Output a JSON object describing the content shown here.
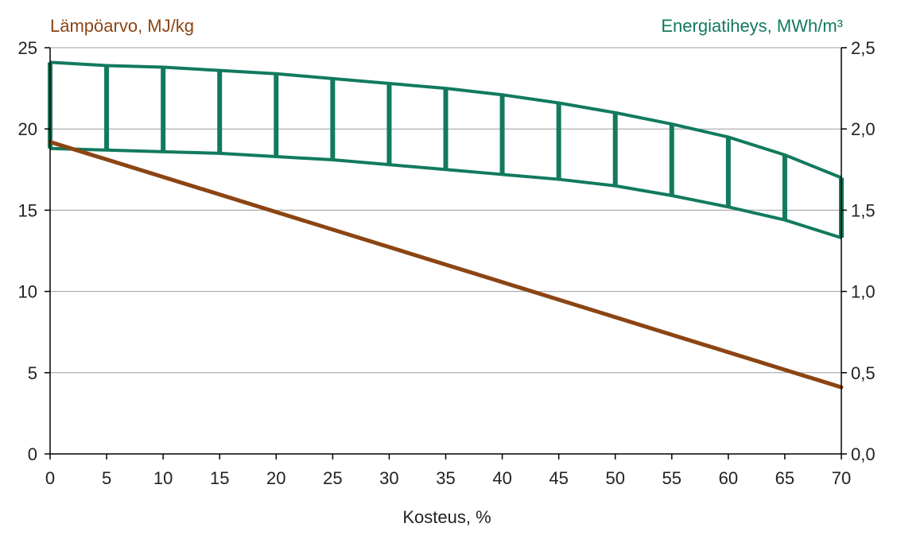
{
  "chart_data": {
    "type": "line",
    "title": "",
    "xlabel": "Kosteus, %",
    "ylabel_left": "Lämpöarvo, MJ/kg",
    "ylabel_right": "Energiatiheys, MWh/m³",
    "x": [
      0,
      5,
      10,
      15,
      20,
      25,
      30,
      35,
      40,
      45,
      50,
      55,
      60,
      65,
      70
    ],
    "x_tick_labels": [
      "0",
      "5",
      "10",
      "15",
      "20",
      "25",
      "30",
      "35",
      "40",
      "45",
      "50",
      "55",
      "60",
      "65",
      "70"
    ],
    "xlim": [
      0,
      70
    ],
    "ylim_left": [
      0,
      25
    ],
    "ylim_right": [
      0,
      2.5
    ],
    "y_left_ticks": [
      0,
      5,
      10,
      15,
      20,
      25
    ],
    "y_left_tick_labels": [
      "0",
      "5",
      "10",
      "15",
      "20",
      "25"
    ],
    "y_right_ticks": [
      0,
      0.5,
      1.0,
      1.5,
      2.0,
      2.5
    ],
    "y_right_tick_labels": [
      "0,0",
      "0,5",
      "1,0",
      "1,5",
      "2,0",
      "2,5"
    ],
    "grid": true,
    "series": [
      {
        "axis": "left",
        "kind": "line",
        "color": "#8B4513",
        "x": [
          0,
          70
        ],
        "values": [
          19.2,
          4.1
        ]
      },
      {
        "axis": "right",
        "kind": "band",
        "color": "#127A5E",
        "x": [
          0,
          5,
          10,
          15,
          20,
          25,
          30,
          35,
          40,
          45,
          50,
          55,
          60,
          65,
          70
        ],
        "upper": [
          2.41,
          2.39,
          2.38,
          2.36,
          2.34,
          2.31,
          2.28,
          2.25,
          2.21,
          2.16,
          2.1,
          2.03,
          1.95,
          1.84,
          1.7
        ],
        "lower": [
          1.88,
          1.87,
          1.86,
          1.85,
          1.83,
          1.81,
          1.78,
          1.75,
          1.72,
          1.69,
          1.65,
          1.59,
          1.52,
          1.44,
          1.33
        ]
      }
    ],
    "colors": {
      "left_axis_title": "#8B4513",
      "right_axis_title": "#127A5E"
    }
  }
}
